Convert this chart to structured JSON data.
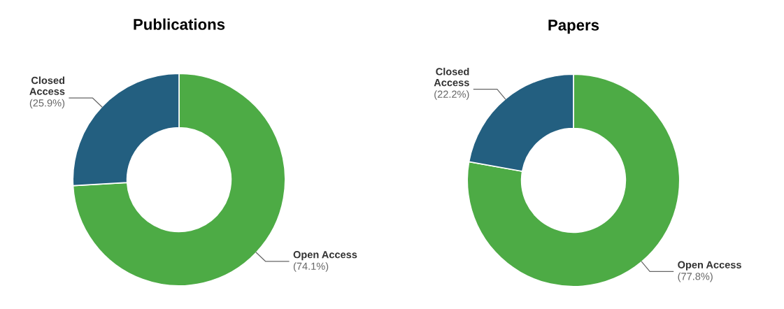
{
  "chart_data": [
    {
      "type": "donut",
      "title": "Publications",
      "categories": [
        "Open Access",
        "Closed Access"
      ],
      "values": [
        74.1,
        25.9
      ],
      "colors": [
        "#4dab45",
        "#235f80"
      ],
      "value_labels": [
        "(74.1%)",
        "(25.9%)"
      ],
      "legend": false
    },
    {
      "type": "donut",
      "title": "Papers",
      "categories": [
        "Open Access",
        "Closed Access"
      ],
      "values": [
        77.8,
        22.2
      ],
      "colors": [
        "#4dab45",
        "#235f80"
      ],
      "value_labels": [
        "(77.8%)",
        "(22.2%)"
      ],
      "legend": false
    }
  ]
}
